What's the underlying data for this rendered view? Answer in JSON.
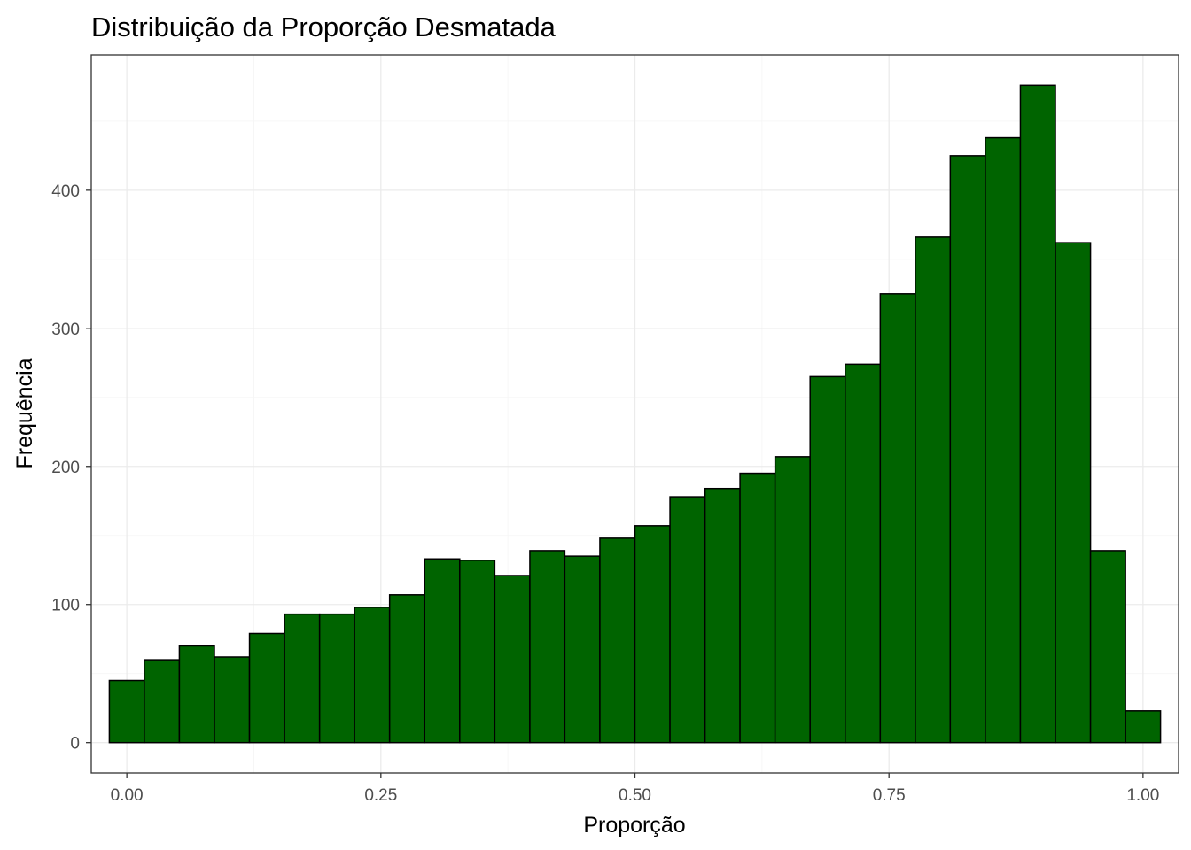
{
  "chart_data": {
    "type": "bar",
    "title": "Distribuição da Proporção Desmatada",
    "xlabel": "Proporção",
    "ylabel": "Frequência",
    "bar_color": "#006400",
    "bar_edge_color": "#000000",
    "xlim": [
      -0.035,
      1.035
    ],
    "ylim": [
      -22,
      498
    ],
    "x_ticks": [
      0.0,
      0.25,
      0.5,
      0.75,
      1.0
    ],
    "x_tick_labels": [
      "0.00",
      "0.25",
      "0.50",
      "0.75",
      "1.00"
    ],
    "y_ticks": [
      0,
      100,
      200,
      300,
      400
    ],
    "y_tick_labels": [
      "0",
      "100",
      "200",
      "300",
      "400"
    ],
    "grid": true,
    "bin_width": 0.0345,
    "bins": [
      {
        "x0": -0.0172,
        "x1": 0.0172,
        "count": 45
      },
      {
        "x0": 0.0172,
        "x1": 0.0517,
        "count": 60
      },
      {
        "x0": 0.0517,
        "x1": 0.0862,
        "count": 70
      },
      {
        "x0": 0.0862,
        "x1": 0.1207,
        "count": 62
      },
      {
        "x0": 0.1207,
        "x1": 0.1552,
        "count": 79
      },
      {
        "x0": 0.1552,
        "x1": 0.1897,
        "count": 93
      },
      {
        "x0": 0.1897,
        "x1": 0.2241,
        "count": 93
      },
      {
        "x0": 0.2241,
        "x1": 0.2586,
        "count": 98
      },
      {
        "x0": 0.2586,
        "x1": 0.2931,
        "count": 107
      },
      {
        "x0": 0.2931,
        "x1": 0.3276,
        "count": 133
      },
      {
        "x0": 0.3276,
        "x1": 0.3621,
        "count": 132
      },
      {
        "x0": 0.3621,
        "x1": 0.3966,
        "count": 121
      },
      {
        "x0": 0.3966,
        "x1": 0.431,
        "count": 139
      },
      {
        "x0": 0.431,
        "x1": 0.4655,
        "count": 135
      },
      {
        "x0": 0.4655,
        "x1": 0.5,
        "count": 148
      },
      {
        "x0": 0.5,
        "x1": 0.5345,
        "count": 157
      },
      {
        "x0": 0.5345,
        "x1": 0.569,
        "count": 178
      },
      {
        "x0": 0.569,
        "x1": 0.6034,
        "count": 184
      },
      {
        "x0": 0.6034,
        "x1": 0.6379,
        "count": 195
      },
      {
        "x0": 0.6379,
        "x1": 0.6724,
        "count": 207
      },
      {
        "x0": 0.6724,
        "x1": 0.7069,
        "count": 265
      },
      {
        "x0": 0.7069,
        "x1": 0.7414,
        "count": 274
      },
      {
        "x0": 0.7414,
        "x1": 0.7759,
        "count": 325
      },
      {
        "x0": 0.7759,
        "x1": 0.8103,
        "count": 366
      },
      {
        "x0": 0.8103,
        "x1": 0.8448,
        "count": 425
      },
      {
        "x0": 0.8448,
        "x1": 0.8793,
        "count": 438
      },
      {
        "x0": 0.8793,
        "x1": 0.9138,
        "count": 476
      },
      {
        "x0": 0.9138,
        "x1": 0.9483,
        "count": 362
      },
      {
        "x0": 0.9483,
        "x1": 0.9828,
        "count": 139
      },
      {
        "x0": 0.9828,
        "x1": 1.0172,
        "count": 23
      }
    ]
  }
}
